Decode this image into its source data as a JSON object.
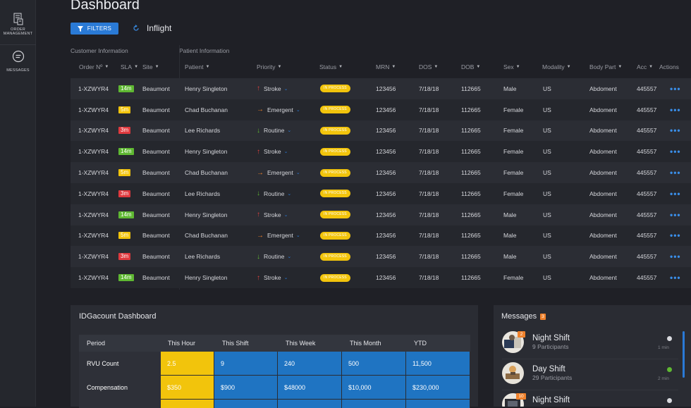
{
  "sidebar": {
    "items": [
      {
        "label_line1": "ORDER",
        "label_line2": "MANAGEMENT",
        "icon": "order-document-icon"
      },
      {
        "label_line1": "MESSAGES",
        "label_line2": "",
        "icon": "chat-bubble-icon"
      }
    ]
  },
  "header": {
    "title": "Dashboard",
    "filters_label": "FILTERS",
    "view_label": "Inflight"
  },
  "sections": {
    "customer": "Customer Information",
    "patient": "Patient Information"
  },
  "columns": {
    "order": "Order Nº",
    "sla": "SLA",
    "site": "Site",
    "patient": "Patient",
    "priority": "Priority",
    "status": "Status",
    "mrn": "MRN",
    "dos": "DOS",
    "dob": "DOB",
    "sex": "Sex",
    "modality": "Modality",
    "bodypart": "Body Part",
    "acc": "Acc",
    "actions": "Actions"
  },
  "colors": {
    "sla_green": "#5fb832",
    "sla_yellow": "#f2c40c",
    "sla_red": "#e0393e",
    "stroke_red": "#e4403f",
    "emergent_orange": "#f0822c",
    "routine_green": "#5fb832",
    "accent_blue": "#2a7ad6"
  },
  "rows": [
    {
      "order": "1-XZWYR4",
      "sla": "14m",
      "sla_color": "#5fb832",
      "site": "Beaumont",
      "patient": "Henry Singleton",
      "priority": "Stroke",
      "pri_icon": "↑",
      "pri_color": "#e4403f",
      "status": "IN PROCESS",
      "mrn": "123456",
      "dos": "7/18/18",
      "dob": "112665",
      "sex": "Male",
      "modality": "US",
      "bodypart": "Abdoment",
      "acc": "445557",
      "actions": "•••"
    },
    {
      "order": "1-XZWYR4",
      "sla": "5m",
      "sla_color": "#f2c40c",
      "site": "Beaumont",
      "patient": "Chad Buchanan",
      "priority": "Emergent",
      "pri_icon": "→",
      "pri_color": "#f0822c",
      "status": "IN PROCESS",
      "mrn": "123456",
      "dos": "7/18/18",
      "dob": "112665",
      "sex": "Female",
      "modality": "US",
      "bodypart": "Abdoment",
      "acc": "445557",
      "actions": "•••"
    },
    {
      "order": "1-XZWYR4",
      "sla": "3m",
      "sla_color": "#e0393e",
      "site": "Beaumont",
      "patient": "Lee Richards",
      "priority": "Routine",
      "pri_icon": "↓",
      "pri_color": "#5fb832",
      "status": "IN PROCESS",
      "mrn": "123456",
      "dos": "7/18/18",
      "dob": "112665",
      "sex": "Female",
      "modality": "US",
      "bodypart": "Abdoment",
      "acc": "445557",
      "actions": "•••"
    },
    {
      "order": "1-XZWYR4",
      "sla": "14m",
      "sla_color": "#5fb832",
      "site": "Beaumont",
      "patient": "Henry Singleton",
      "priority": "Stroke",
      "pri_icon": "↑",
      "pri_color": "#e4403f",
      "status": "IN PROCESS",
      "mrn": "123456",
      "dos": "7/18/18",
      "dob": "112665",
      "sex": "Female",
      "modality": "US",
      "bodypart": "Abdoment",
      "acc": "445557",
      "actions": "•••"
    },
    {
      "order": "1-XZWYR4",
      "sla": "5m",
      "sla_color": "#f2c40c",
      "site": "Beaumont",
      "patient": "Chad Buchanan",
      "priority": "Emergent",
      "pri_icon": "→",
      "pri_color": "#f0822c",
      "status": "IN PROCESS",
      "mrn": "123456",
      "dos": "7/18/18",
      "dob": "112665",
      "sex": "Female",
      "modality": "US",
      "bodypart": "Abdoment",
      "acc": "445557",
      "actions": "•••"
    },
    {
      "order": "1-XZWYR4",
      "sla": "3m",
      "sla_color": "#e0393e",
      "site": "Beaumont",
      "patient": "Lee Richards",
      "priority": "Routine",
      "pri_icon": "↓",
      "pri_color": "#5fb832",
      "status": "IN PROCESS",
      "mrn": "123456",
      "dos": "7/18/18",
      "dob": "112665",
      "sex": "Female",
      "modality": "US",
      "bodypart": "Abdoment",
      "acc": "445557",
      "actions": "•••"
    },
    {
      "order": "1-XZWYR4",
      "sla": "14m",
      "sla_color": "#5fb832",
      "site": "Beaumont",
      "patient": "Henry Singleton",
      "priority": "Stroke",
      "pri_icon": "↑",
      "pri_color": "#e4403f",
      "status": "IN PROCESS",
      "mrn": "123456",
      "dos": "7/18/18",
      "dob": "112665",
      "sex": "Male",
      "modality": "US",
      "bodypart": "Abdoment",
      "acc": "445557",
      "actions": "•••"
    },
    {
      "order": "1-XZWYR4",
      "sla": "5m",
      "sla_color": "#f2c40c",
      "site": "Beaumont",
      "patient": "Chad Buchanan",
      "priority": "Emergent",
      "pri_icon": "→",
      "pri_color": "#f0822c",
      "status": "IN PROCESS",
      "mrn": "123456",
      "dos": "7/18/18",
      "dob": "112665",
      "sex": "Male",
      "modality": "US",
      "bodypart": "Abdoment",
      "acc": "445557",
      "actions": "•••"
    },
    {
      "order": "1-XZWYR4",
      "sla": "3m",
      "sla_color": "#e0393e",
      "site": "Beaumont",
      "patient": "Lee Richards",
      "priority": "Routine",
      "pri_icon": "↓",
      "pri_color": "#5fb832",
      "status": "IN PROCESS",
      "mrn": "123456",
      "dos": "7/18/18",
      "dob": "112665",
      "sex": "Male",
      "modality": "US",
      "bodypart": "Abdoment",
      "acc": "445557",
      "actions": "•••"
    },
    {
      "order": "1-XZWYR4",
      "sla": "14m",
      "sla_color": "#5fb832",
      "site": "Beaumont",
      "patient": "Henry Singleton",
      "priority": "Stroke",
      "pri_icon": "↑",
      "pri_color": "#e4403f",
      "status": "IN PROCESS",
      "mrn": "123456",
      "dos": "7/18/18",
      "dob": "112665",
      "sex": "Female",
      "modality": "US",
      "bodypart": "Abdoment",
      "acc": "445557",
      "actions": "•••"
    }
  ],
  "idg": {
    "title": "IDGacount Dashboard",
    "headers": [
      "Period",
      "This Hour",
      "This Shift",
      "This Week",
      "This Month",
      "YTD"
    ],
    "rows": [
      {
        "label": "RVU Count",
        "values": [
          "2.5",
          "9",
          "240",
          "500",
          "11,500"
        ]
      },
      {
        "label": "Compensation",
        "values": [
          "$350",
          "$900",
          "$48000",
          "$10,000",
          "$230,000"
        ]
      }
    ]
  },
  "messages": {
    "title": "Messages",
    "count": "3",
    "items": [
      {
        "name": "Night Shift",
        "sub": "9 Participants",
        "time": "1 min",
        "badge": "2",
        "dot_color": "#d8d9de"
      },
      {
        "name": "Day Shift",
        "sub": "29 Participants",
        "time": "2 min",
        "badge": "",
        "dot_color": "#5fb832"
      },
      {
        "name": "Night Shift",
        "sub": "",
        "time": "",
        "badge": "10",
        "dot_color": "#d8d9de"
      }
    ]
  }
}
